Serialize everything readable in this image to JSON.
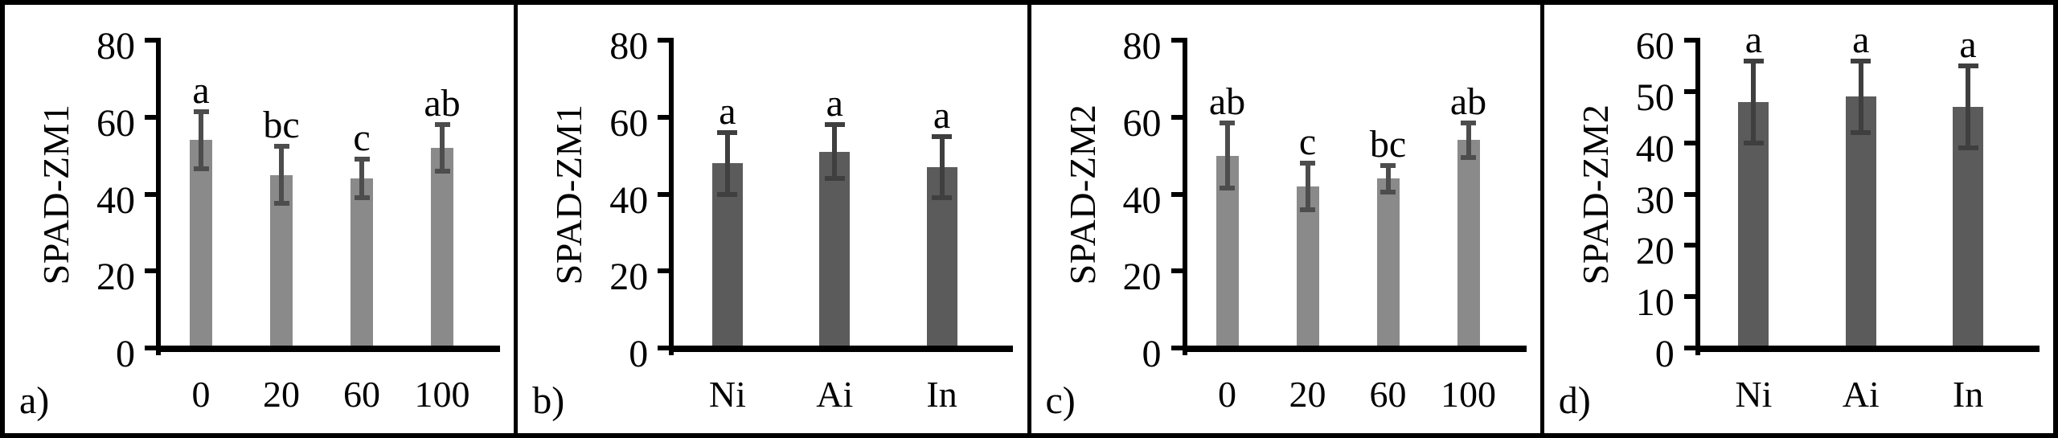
{
  "chart_data": [
    {
      "type": "bar",
      "panel_label": "a)",
      "ylabel": "SPAD-ZM1",
      "categories": [
        "0",
        "20",
        "60",
        "100"
      ],
      "values": [
        54,
        45,
        44,
        52
      ],
      "errors": [
        7.5,
        7.5,
        5,
        6
      ],
      "sig_letters": [
        "a",
        "bc",
        "c",
        "ab"
      ],
      "ylim": [
        0,
        80
      ],
      "yticks": [
        0,
        20,
        40,
        60,
        80
      ],
      "grid": "off",
      "legend": "none",
      "bar_color": "#8a8a8a",
      "error_color": "#4d4d4d"
    },
    {
      "type": "bar",
      "panel_label": "b)",
      "ylabel": "SPAD-ZM1",
      "categories": [
        "Ni",
        "Ai",
        "In"
      ],
      "values": [
        48,
        51,
        47
      ],
      "errors": [
        8,
        7,
        8
      ],
      "sig_letters": [
        "a",
        "a",
        "a"
      ],
      "ylim": [
        0,
        80
      ],
      "yticks": [
        0,
        20,
        40,
        60,
        80
      ],
      "grid": "off",
      "legend": "none",
      "bar_color": "#5b5b5b",
      "error_color": "#3f3f3f"
    },
    {
      "type": "bar",
      "panel_label": "c)",
      "ylabel": "SPAD-ZM2",
      "categories": [
        "0",
        "20",
        "60",
        "100"
      ],
      "values": [
        50,
        42,
        44,
        54
      ],
      "errors": [
        8.5,
        6,
        3.5,
        4.5
      ],
      "sig_letters": [
        "ab",
        "c",
        "bc",
        "ab"
      ],
      "ylim": [
        0,
        80
      ],
      "yticks": [
        0,
        20,
        40,
        60,
        80
      ],
      "grid": "off",
      "legend": "none",
      "bar_color": "#8a8a8a",
      "error_color": "#4d4d4d"
    },
    {
      "type": "bar",
      "panel_label": "d)",
      "ylabel": "SPAD-ZM2",
      "categories": [
        "Ni",
        "Ai",
        "In"
      ],
      "values": [
        48,
        49,
        47
      ],
      "errors": [
        8,
        7,
        8
      ],
      "sig_letters": [
        "a",
        "a",
        "a"
      ],
      "ylim": [
        0,
        60
      ],
      "yticks": [
        0,
        10,
        20,
        30,
        40,
        50,
        60
      ],
      "grid": "off",
      "legend": "none",
      "bar_color": "#5b5b5b",
      "error_color": "#3f3f3f"
    }
  ]
}
